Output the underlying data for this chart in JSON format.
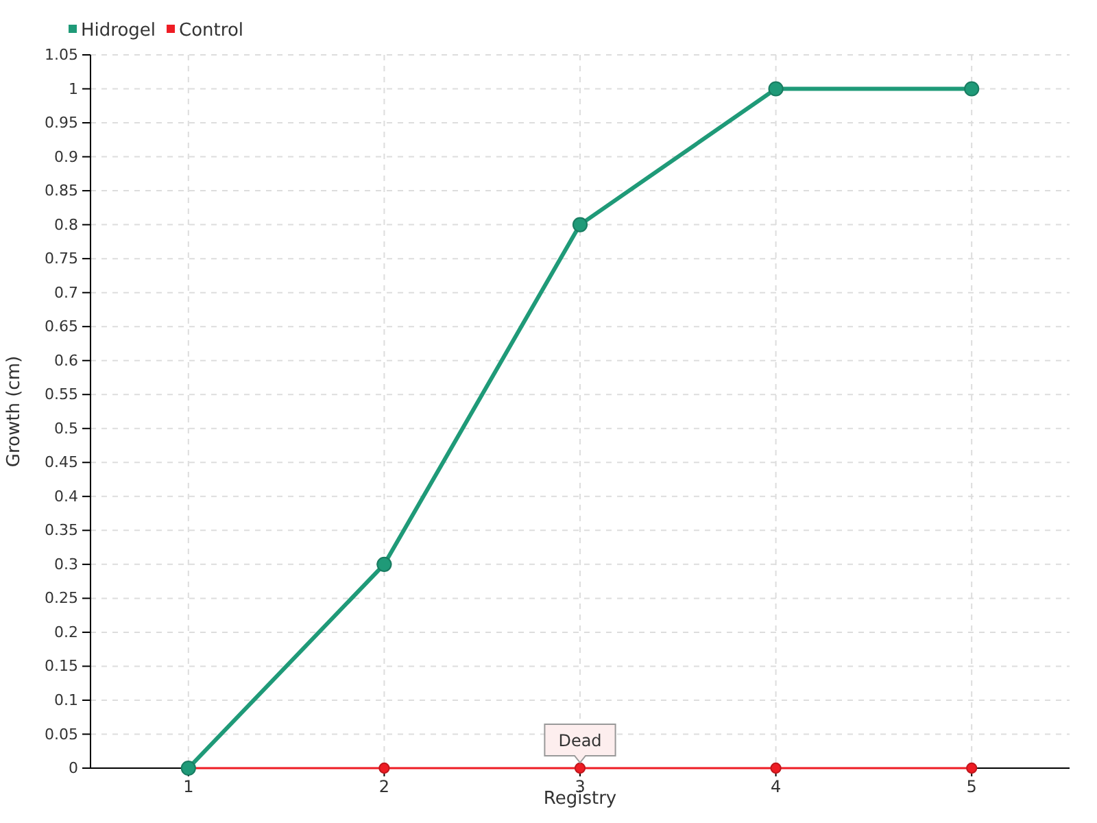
{
  "chart_data": {
    "type": "line",
    "xlabel": "Registry",
    "ylabel": "Growth (cm)",
    "categories": [
      "1",
      "2",
      "3",
      "4",
      "5"
    ],
    "series": [
      {
        "name": "Hidrogel",
        "color": "#1f9a78",
        "values": [
          0,
          0.3,
          0.8,
          1,
          1
        ]
      },
      {
        "name": "Control",
        "color": "#ee1c24",
        "values": [
          0,
          0,
          0,
          0,
          0
        ]
      }
    ],
    "ylim": [
      0,
      1.05
    ],
    "yticks": [
      0,
      0.05,
      0.1,
      0.15,
      0.2,
      0.25,
      0.3,
      0.35,
      0.4,
      0.45,
      0.5,
      0.55,
      0.6,
      0.65,
      0.7,
      0.75,
      0.8,
      0.85,
      0.9,
      0.95,
      1,
      1.05
    ],
    "grid": true,
    "legend": "top left",
    "marker": "circle",
    "line_style": "solid",
    "annotations": [
      {
        "text": "Dead",
        "x": "3",
        "y": 0
      }
    ]
  }
}
